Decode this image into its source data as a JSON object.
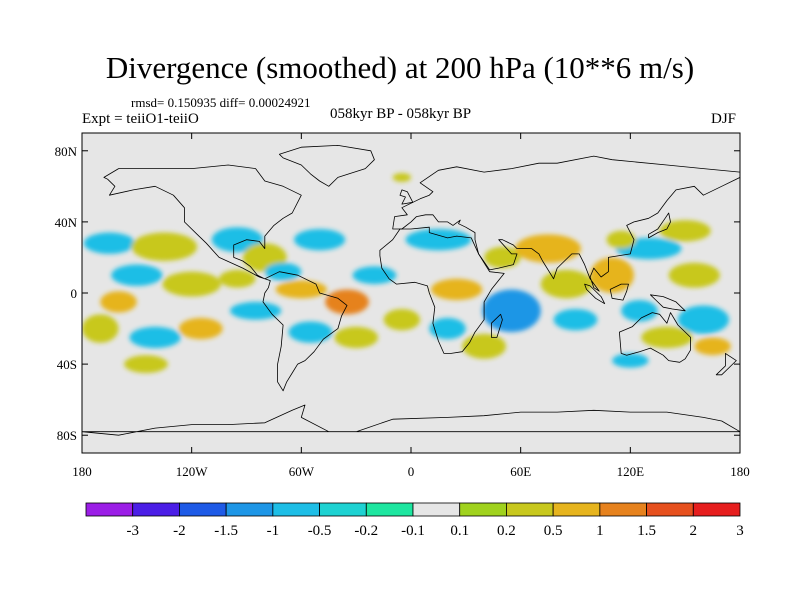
{
  "figure": {
    "title": "Divergence (smoothed) at 200 hPa (10**6 m/s)",
    "stats": "rmsd= 0.150935 diff= 0.00024921",
    "experiment": "Expt = teiiO1-teiiO",
    "period": "058kyr BP - 058kyr BP",
    "season": "DJF"
  },
  "map": {
    "projection": "cylindrical equidistant",
    "lon_range": [
      -180,
      180
    ],
    "lat_range": [
      -90,
      90
    ],
    "lon_ticks": [
      {
        "value": -180,
        "label": "180"
      },
      {
        "value": -120,
        "label": "120W"
      },
      {
        "value": -60,
        "label": "60W"
      },
      {
        "value": 0,
        "label": "0"
      },
      {
        "value": 60,
        "label": "60E"
      },
      {
        "value": 120,
        "label": "120E"
      },
      {
        "value": 180,
        "label": "180"
      }
    ],
    "lat_ticks": [
      {
        "value": 80,
        "label": "80N"
      },
      {
        "value": 40,
        "label": "40N"
      },
      {
        "value": 0,
        "label": "0"
      },
      {
        "value": -40,
        "label": "40S"
      },
      {
        "value": -80,
        "label": "80S"
      }
    ],
    "background_color": "#e6e6e6",
    "coastline_color": "#000000"
  },
  "colorbar": {
    "labels": [
      "-3",
      "-2",
      "-1.5",
      "-1",
      "-0.5",
      "-0.2",
      "-0.1",
      "0.1",
      "0.2",
      "0.5",
      "1",
      "1.5",
      "2",
      "3"
    ],
    "colors": [
      "#9b1ee6",
      "#4b1ee6",
      "#1e5ae6",
      "#1e96e6",
      "#1ebee6",
      "#1ed2d2",
      "#1ee6a0",
      "#e6e6e6",
      "#a0d21e",
      "#c8c81e",
      "#e6b41e",
      "#e6821e",
      "#e6501e",
      "#e61e1e"
    ]
  },
  "anomalies": [
    {
      "lon": -165,
      "lat": 28,
      "rx": 14,
      "ry": 6,
      "level": "-0.5"
    },
    {
      "lon": -135,
      "lat": 26,
      "rx": 18,
      "ry": 8,
      "level": "0.2"
    },
    {
      "lon": -150,
      "lat": 10,
      "rx": 14,
      "ry": 6,
      "level": "-0.5"
    },
    {
      "lon": -120,
      "lat": 5,
      "rx": 16,
      "ry": 7,
      "level": "0.2"
    },
    {
      "lon": -160,
      "lat": -5,
      "rx": 10,
      "ry": 6,
      "level": "0.5"
    },
    {
      "lon": -170,
      "lat": -20,
      "rx": 10,
      "ry": 8,
      "level": "0.2"
    },
    {
      "lon": -140,
      "lat": -25,
      "rx": 14,
      "ry": 6,
      "level": "-0.5"
    },
    {
      "lon": -115,
      "lat": -20,
      "rx": 12,
      "ry": 6,
      "level": "0.5"
    },
    {
      "lon": -145,
      "lat": -40,
      "rx": 12,
      "ry": 5,
      "level": "0.2"
    },
    {
      "lon": -95,
      "lat": 30,
      "rx": 14,
      "ry": 7,
      "level": "-0.5"
    },
    {
      "lon": -80,
      "lat": 20,
      "rx": 12,
      "ry": 8,
      "level": "0.2"
    },
    {
      "lon": -70,
      "lat": 12,
      "rx": 10,
      "ry": 5,
      "level": "-0.5"
    },
    {
      "lon": -95,
      "lat": 8,
      "rx": 10,
      "ry": 5,
      "level": "0.2"
    },
    {
      "lon": -60,
      "lat": 2,
      "rx": 14,
      "ry": 5,
      "level": "0.5"
    },
    {
      "lon": -35,
      "lat": -5,
      "rx": 12,
      "ry": 7,
      "level": "1"
    },
    {
      "lon": -85,
      "lat": -10,
      "rx": 14,
      "ry": 5,
      "level": "-0.5"
    },
    {
      "lon": -55,
      "lat": -22,
      "rx": 12,
      "ry": 6,
      "level": "-0.5"
    },
    {
      "lon": -30,
      "lat": -25,
      "rx": 12,
      "ry": 6,
      "level": "0.2"
    },
    {
      "lon": -50,
      "lat": 30,
      "rx": 14,
      "ry": 6,
      "level": "-0.5"
    },
    {
      "lon": -20,
      "lat": 10,
      "rx": 12,
      "ry": 5,
      "level": "-0.5"
    },
    {
      "lon": -5,
      "lat": -15,
      "rx": 10,
      "ry": 6,
      "level": "0.2"
    },
    {
      "lon": 15,
      "lat": 30,
      "rx": 18,
      "ry": 6,
      "level": "-0.5"
    },
    {
      "lon": 25,
      "lat": 2,
      "rx": 14,
      "ry": 6,
      "level": "0.5"
    },
    {
      "lon": 20,
      "lat": -20,
      "rx": 10,
      "ry": 6,
      "level": "-0.5"
    },
    {
      "lon": 40,
      "lat": -30,
      "rx": 12,
      "ry": 7,
      "level": "0.2"
    },
    {
      "lon": 50,
      "lat": 20,
      "rx": 10,
      "ry": 6,
      "level": "0.2"
    },
    {
      "lon": 55,
      "lat": -10,
      "rx": 16,
      "ry": 12,
      "level": "-1"
    },
    {
      "lon": 75,
      "lat": 25,
      "rx": 18,
      "ry": 8,
      "level": "0.5"
    },
    {
      "lon": 85,
      "lat": 5,
      "rx": 14,
      "ry": 8,
      "level": "0.2"
    },
    {
      "lon": 90,
      "lat": -15,
      "rx": 12,
      "ry": 6,
      "level": "-0.5"
    },
    {
      "lon": 110,
      "lat": 10,
      "rx": 12,
      "ry": 10,
      "level": "0.5"
    },
    {
      "lon": 130,
      "lat": 25,
      "rx": 18,
      "ry": 6,
      "level": "-0.5"
    },
    {
      "lon": 150,
      "lat": 35,
      "rx": 14,
      "ry": 6,
      "level": "0.2"
    },
    {
      "lon": 125,
      "lat": -10,
      "rx": 10,
      "ry": 6,
      "level": "-0.5"
    },
    {
      "lon": 155,
      "lat": 10,
      "rx": 14,
      "ry": 7,
      "level": "0.2"
    },
    {
      "lon": 160,
      "lat": -15,
      "rx": 14,
      "ry": 8,
      "level": "-0.5"
    },
    {
      "lon": 140,
      "lat": -25,
      "rx": 14,
      "ry": 6,
      "level": "0.2"
    },
    {
      "lon": 120,
      "lat": -38,
      "rx": 10,
      "ry": 4,
      "level": "-0.5"
    },
    {
      "lon": 165,
      "lat": -30,
      "rx": 10,
      "ry": 5,
      "level": "0.5"
    },
    {
      "lon": 115,
      "lat": 30,
      "rx": 8,
      "ry": 5,
      "level": "0.2"
    },
    {
      "lon": -5,
      "lat": 65,
      "rx": 5,
      "ry": 2.5,
      "level": "0.2"
    }
  ],
  "landmasses": [
    {
      "name": "north-america",
      "points": [
        [
          -168,
          65
        ],
        [
          -160,
          70
        ],
        [
          -140,
          70
        ],
        [
          -120,
          70
        ],
        [
          -100,
          72
        ],
        [
          -85,
          70
        ],
        [
          -80,
          63
        ],
        [
          -70,
          60
        ],
        [
          -60,
          55
        ],
        [
          -65,
          45
        ],
        [
          -70,
          42
        ],
        [
          -75,
          38
        ],
        [
          -80,
          32
        ],
        [
          -80,
          25
        ],
        [
          -83,
          29
        ],
        [
          -90,
          30
        ],
        [
          -97,
          27
        ],
        [
          -97,
          20
        ],
        [
          -92,
          18
        ],
        [
          -88,
          15
        ],
        [
          -84,
          10
        ],
        [
          -80,
          8
        ],
        [
          -83,
          9
        ],
        [
          -92,
          14
        ],
        [
          -105,
          20
        ],
        [
          -112,
          28
        ],
        [
          -117,
          33
        ],
        [
          -124,
          40
        ],
        [
          -124,
          48
        ],
        [
          -130,
          55
        ],
        [
          -140,
          60
        ],
        [
          -152,
          58
        ],
        [
          -165,
          55
        ],
        [
          -162,
          60
        ],
        [
          -166,
          64
        ]
      ]
    },
    {
      "name": "south-america",
      "points": [
        [
          -80,
          8
        ],
        [
          -72,
          12
        ],
        [
          -62,
          10
        ],
        [
          -52,
          5
        ],
        [
          -50,
          0
        ],
        [
          -40,
          -3
        ],
        [
          -35,
          -7
        ],
        [
          -38,
          -13
        ],
        [
          -40,
          -20
        ],
        [
          -48,
          -26
        ],
        [
          -53,
          -33
        ],
        [
          -58,
          -38
        ],
        [
          -62,
          -40
        ],
        [
          -65,
          -45
        ],
        [
          -68,
          -50
        ],
        [
          -70,
          -55
        ],
        [
          -73,
          -50
        ],
        [
          -73,
          -40
        ],
        [
          -71,
          -30
        ],
        [
          -70,
          -18
        ],
        [
          -76,
          -12
        ],
        [
          -81,
          -5
        ],
        [
          -80,
          0
        ],
        [
          -78,
          3
        ],
        [
          -77,
          7
        ]
      ]
    },
    {
      "name": "greenland",
      "points": [
        [
          -72,
          78
        ],
        [
          -60,
          82
        ],
        [
          -40,
          83
        ],
        [
          -22,
          80
        ],
        [
          -20,
          75
        ],
        [
          -25,
          70
        ],
        [
          -40,
          65
        ],
        [
          -45,
          60
        ],
        [
          -50,
          63
        ],
        [
          -55,
          67
        ],
        [
          -60,
          72
        ],
        [
          -70,
          76
        ]
      ]
    },
    {
      "name": "eurasia",
      "points": [
        [
          -10,
          36
        ],
        [
          -9,
          43
        ],
        [
          -2,
          44
        ],
        [
          -5,
          48
        ],
        [
          5,
          53
        ],
        [
          10,
          55
        ],
        [
          12,
          57
        ],
        [
          5,
          62
        ],
        [
          15,
          69
        ],
        [
          25,
          71
        ],
        [
          40,
          68
        ],
        [
          55,
          70
        ],
        [
          70,
          73
        ],
        [
          80,
          73
        ],
        [
          100,
          77
        ],
        [
          110,
          75
        ],
        [
          140,
          72
        ],
        [
          160,
          70
        ],
        [
          180,
          68
        ],
        [
          180,
          65
        ],
        [
          170,
          60
        ],
        [
          160,
          55
        ],
        [
          155,
          60
        ],
        [
          145,
          58
        ],
        [
          140,
          52
        ],
        [
          135,
          45
        ],
        [
          130,
          42
        ],
        [
          122,
          40
        ],
        [
          118,
          38
        ],
        [
          122,
          30
        ],
        [
          120,
          22
        ],
        [
          108,
          20
        ],
        [
          108,
          12
        ],
        [
          104,
          9
        ],
        [
          100,
          14
        ],
        [
          98,
          9
        ],
        [
          100,
          3
        ],
        [
          103,
          1
        ],
        [
          98,
          8
        ],
        [
          95,
          16
        ],
        [
          92,
          22
        ],
        [
          88,
          22
        ],
        [
          80,
          14
        ],
        [
          78,
          8
        ],
        [
          72,
          18
        ],
        [
          70,
          22
        ],
        [
          66,
          25
        ],
        [
          58,
          25
        ],
        [
          56,
          27
        ],
        [
          50,
          30
        ],
        [
          48,
          30
        ],
        [
          55,
          22
        ],
        [
          58,
          22
        ],
        [
          56,
          16
        ],
        [
          48,
          14
        ],
        [
          43,
          13
        ],
        [
          37,
          22
        ],
        [
          35,
          30
        ],
        [
          35,
          34
        ],
        [
          30,
          37
        ],
        [
          26,
          39
        ],
        [
          27,
          41
        ],
        [
          23,
          38
        ],
        [
          20,
          40
        ],
        [
          15,
          40
        ],
        [
          12,
          44
        ],
        [
          8,
          44
        ],
        [
          3,
          43
        ],
        [
          0,
          40
        ],
        [
          -5,
          36
        ]
      ]
    },
    {
      "name": "africa",
      "points": [
        [
          -17,
          21
        ],
        [
          -16,
          14
        ],
        [
          -12,
          8
        ],
        [
          -8,
          5
        ],
        [
          2,
          6
        ],
        [
          9,
          4
        ],
        [
          10,
          0
        ],
        [
          13,
          -8
        ],
        [
          12,
          -17
        ],
        [
          15,
          -27
        ],
        [
          18,
          -34
        ],
        [
          22,
          -34
        ],
        [
          28,
          -33
        ],
        [
          32,
          -28
        ],
        [
          35,
          -22
        ],
        [
          40,
          -15
        ],
        [
          40,
          -5
        ],
        [
          44,
          2
        ],
        [
          51,
          11
        ],
        [
          43,
          12
        ],
        [
          37,
          22
        ],
        [
          33,
          31
        ],
        [
          25,
          32
        ],
        [
          20,
          31
        ],
        [
          10,
          34
        ],
        [
          10,
          37
        ],
        [
          0,
          36
        ],
        [
          -6,
          36
        ],
        [
          -10,
          30
        ],
        [
          -17,
          24
        ]
      ]
    },
    {
      "name": "madagascar",
      "points": [
        [
          44,
          -25
        ],
        [
          47,
          -25
        ],
        [
          50,
          -15
        ],
        [
          49,
          -12
        ],
        [
          44,
          -17
        ]
      ]
    },
    {
      "name": "australia",
      "points": [
        [
          114,
          -22
        ],
        [
          115,
          -34
        ],
        [
          118,
          -35
        ],
        [
          125,
          -33
        ],
        [
          131,
          -31
        ],
        [
          138,
          -35
        ],
        [
          141,
          -38
        ],
        [
          147,
          -39
        ],
        [
          150,
          -37
        ],
        [
          153,
          -32
        ],
        [
          153,
          -25
        ],
        [
          146,
          -18
        ],
        [
          142,
          -11
        ],
        [
          140,
          -17
        ],
        [
          136,
          -12
        ],
        [
          132,
          -11
        ],
        [
          126,
          -14
        ],
        [
          121,
          -19
        ]
      ]
    },
    {
      "name": "borneo",
      "points": [
        [
          109,
          2
        ],
        [
          115,
          5
        ],
        [
          119,
          5
        ],
        [
          118,
          1
        ],
        [
          116,
          -4
        ],
        [
          110,
          -3
        ]
      ]
    },
    {
      "name": "sumatra",
      "points": [
        [
          95,
          5
        ],
        [
          98,
          4
        ],
        [
          104,
          -2
        ],
        [
          106,
          -6
        ],
        [
          101,
          -3
        ],
        [
          96,
          2
        ]
      ]
    },
    {
      "name": "new-guinea",
      "points": [
        [
          131,
          -1
        ],
        [
          138,
          -2
        ],
        [
          145,
          -5
        ],
        [
          150,
          -10
        ],
        [
          143,
          -9
        ],
        [
          138,
          -8
        ],
        [
          134,
          -4
        ]
      ]
    },
    {
      "name": "japan",
      "points": [
        [
          130,
          31
        ],
        [
          135,
          34
        ],
        [
          140,
          36
        ],
        [
          142,
          40
        ],
        [
          141,
          45
        ],
        [
          139,
          42
        ],
        [
          135,
          36
        ],
        [
          130,
          33
        ]
      ]
    },
    {
      "name": "great-britain",
      "points": [
        [
          -5,
          50
        ],
        [
          1,
          51
        ],
        [
          0,
          53
        ],
        [
          -2,
          57
        ],
        [
          -5,
          58
        ],
        [
          -6,
          55
        ],
        [
          -3,
          54
        ]
      ]
    },
    {
      "name": "new-zealand",
      "points": [
        [
          172,
          -34
        ],
        [
          178,
          -38
        ],
        [
          175,
          -41
        ],
        [
          170,
          -46
        ],
        [
          167,
          -46
        ],
        [
          172,
          -41
        ]
      ]
    },
    {
      "name": "antarctica",
      "points": [
        [
          -180,
          -78
        ],
        [
          -160,
          -80
        ],
        [
          -140,
          -76
        ],
        [
          -120,
          -74
        ],
        [
          -100,
          -74
        ],
        [
          -80,
          -73
        ],
        [
          -65,
          -66
        ],
        [
          -58,
          -63
        ],
        [
          -60,
          -70
        ],
        [
          -45,
          -78
        ],
        [
          -30,
          -78
        ],
        [
          -10,
          -71
        ],
        [
          20,
          -70
        ],
        [
          40,
          -69
        ],
        [
          60,
          -67
        ],
        [
          80,
          -67
        ],
        [
          100,
          -66
        ],
        [
          120,
          -67
        ],
        [
          140,
          -67
        ],
        [
          160,
          -70
        ],
        [
          170,
          -72
        ],
        [
          180,
          -78
        ]
      ]
    }
  ]
}
